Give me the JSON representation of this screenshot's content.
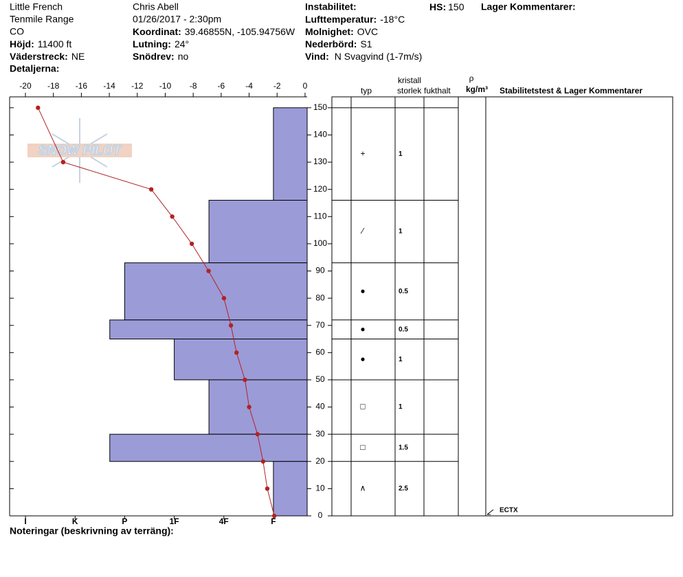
{
  "header": {
    "site": "Little French",
    "range": "Tenmile Range",
    "state": "CO",
    "elevation": {
      "label": "Höjd:",
      "value": "11400 ft"
    },
    "aspect": {
      "label": "Väderstreck:",
      "value": "NE"
    },
    "details": {
      "label": "Detaljerna:"
    },
    "observer": "Chris Abell",
    "datetime": "01/26/2017 - 2:30pm",
    "coordinates": {
      "label": "Koordinat:",
      "value": "39.46855N, -105.94756W"
    },
    "slope": {
      "label": "Lutning:",
      "value": "24°"
    },
    "wind_loading": {
      "label": "Snödrev:",
      "value": "no"
    },
    "instability": {
      "label": "Instabilitet:"
    },
    "air_temp": {
      "label": "Lufttemperatur:",
      "value": "-18°C"
    },
    "sky": {
      "label": "Molnighet:",
      "value": "OVC"
    },
    "precip": {
      "label": "Nederbörd:",
      "value": "S1"
    },
    "wind": {
      "label": "Vind:",
      "value": "N Svagvind (1-7m/s)"
    },
    "hs": {
      "label": "HS:",
      "value": 150
    },
    "layer_comments": {
      "label": "Lager Kommentarer:"
    }
  },
  "notes": {
    "label": "Noteringar (beskrivning av terräng):"
  },
  "logo_text": "SNOW PILOT",
  "chart_data": {
    "type": "snow-profile",
    "ylim": [
      0,
      154
    ],
    "yticks": [
      0,
      10,
      20,
      30,
      40,
      50,
      60,
      70,
      80,
      90,
      100,
      110,
      120,
      130,
      140,
      150
    ],
    "temperature": {
      "color": "#b22222",
      "xlim": [
        -21.13,
        0.15
      ],
      "xticks": [
        -20,
        -18,
        -16,
        -14,
        -12,
        -10,
        -8,
        -6,
        -4,
        -2,
        0
      ],
      "heights": [
        150,
        130,
        120,
        110,
        100,
        90,
        80,
        70,
        60,
        50,
        40,
        30,
        20,
        10,
        0
      ],
      "values": [
        -19.1,
        -17.3,
        -11.0,
        -9.5,
        -8.1,
        -6.9,
        -5.8,
        -5.3,
        -4.9,
        -4.3,
        -4.0,
        -3.4,
        -3.0,
        -2.7,
        -2.2
      ]
    },
    "hardness": {
      "color": "#9b9bd8",
      "xlim": [
        6.32,
        0.32
      ],
      "xticks": [
        {
          "value": 6,
          "label": "I"
        },
        {
          "value": 5,
          "label": "K"
        },
        {
          "value": 4,
          "label": "P"
        },
        {
          "value": 3,
          "label": "1F"
        },
        {
          "value": 2,
          "label": "4F"
        },
        {
          "value": 1,
          "label": "F"
        }
      ],
      "bottoms": [
        116,
        93,
        72,
        65,
        50,
        30,
        20,
        0
      ],
      "tops": [
        150,
        116,
        93,
        72,
        65,
        50,
        30,
        20
      ],
      "values": [
        1,
        2.3,
        4,
        4.3,
        3,
        2.3,
        4.3,
        1
      ]
    },
    "table_headers": {
      "type": "typ",
      "crystal": "kristall",
      "size": "storlek",
      "moisture": "fukthalt",
      "rho": "ρ",
      "density": "kg/m³",
      "comments": "Stabilitetstest & Lager Kommentarer"
    },
    "grains": [
      "+",
      "∕",
      "●",
      "●",
      "●",
      "□",
      "□",
      "∧"
    ],
    "sizes": [
      1,
      1,
      0.5,
      0.5,
      1,
      1,
      1.5,
      2.5
    ],
    "tests": [
      {
        "height": 0,
        "label": "ECTX"
      }
    ]
  }
}
